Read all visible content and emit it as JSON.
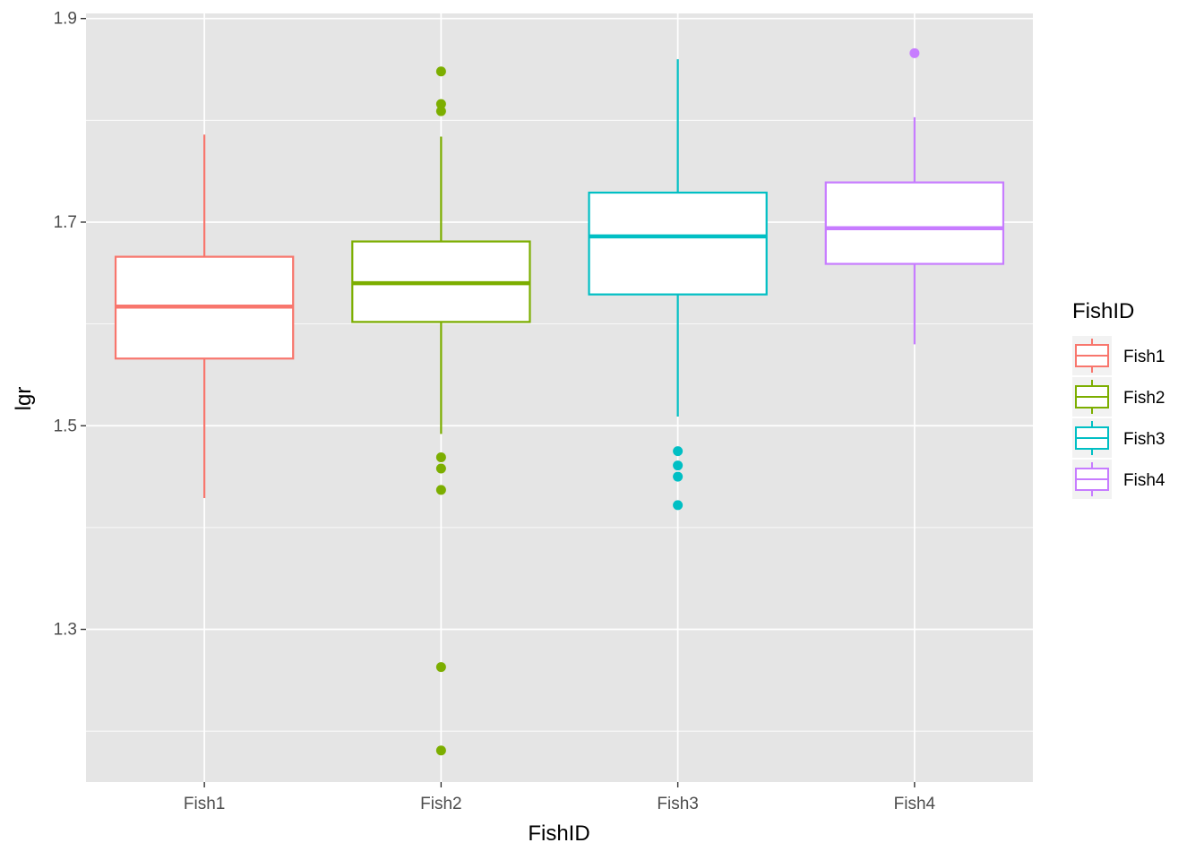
{
  "chart_data": {
    "type": "box",
    "xlabel": "FishID",
    "ylabel": "lgr",
    "categories": [
      "Fish1",
      "Fish2",
      "Fish3",
      "Fish4"
    ],
    "ylim": [
      1.15,
      1.905
    ],
    "y_ticks": [
      "1.3",
      "1.5",
      "1.7",
      "1.9"
    ],
    "y_tick_values": [
      1.3,
      1.5,
      1.7,
      1.9
    ],
    "y_minor_ticks": [
      1.2,
      1.4,
      1.6,
      1.8
    ],
    "grid": true,
    "background": "#e5e5e5",
    "legend": {
      "title": "FishID",
      "position": "right",
      "entries": [
        "Fish1",
        "Fish2",
        "Fish3",
        "Fish4"
      ]
    },
    "colors": [
      "#f8766d",
      "#7cae00",
      "#00bfc4",
      "#c77cff"
    ],
    "boxes": [
      {
        "name": "Fish1",
        "lower_whisker": 1.429,
        "q1": 1.566,
        "median": 1.617,
        "q3": 1.666,
        "upper_whisker": 1.786,
        "outliers": []
      },
      {
        "name": "Fish2",
        "lower_whisker": 1.492,
        "q1": 1.602,
        "median": 1.64,
        "q3": 1.681,
        "upper_whisker": 1.784,
        "outliers": [
          1.848,
          1.816,
          1.809,
          1.469,
          1.458,
          1.437,
          1.263,
          1.181
        ]
      },
      {
        "name": "Fish3",
        "lower_whisker": 1.509,
        "q1": 1.629,
        "median": 1.686,
        "q3": 1.729,
        "upper_whisker": 1.86,
        "outliers": [
          1.475,
          1.461,
          1.45,
          1.422
        ]
      },
      {
        "name": "Fish4",
        "lower_whisker": 1.58,
        "q1": 1.659,
        "median": 1.694,
        "q3": 1.739,
        "upper_whisker": 1.803,
        "outliers": [
          1.866
        ]
      }
    ]
  }
}
